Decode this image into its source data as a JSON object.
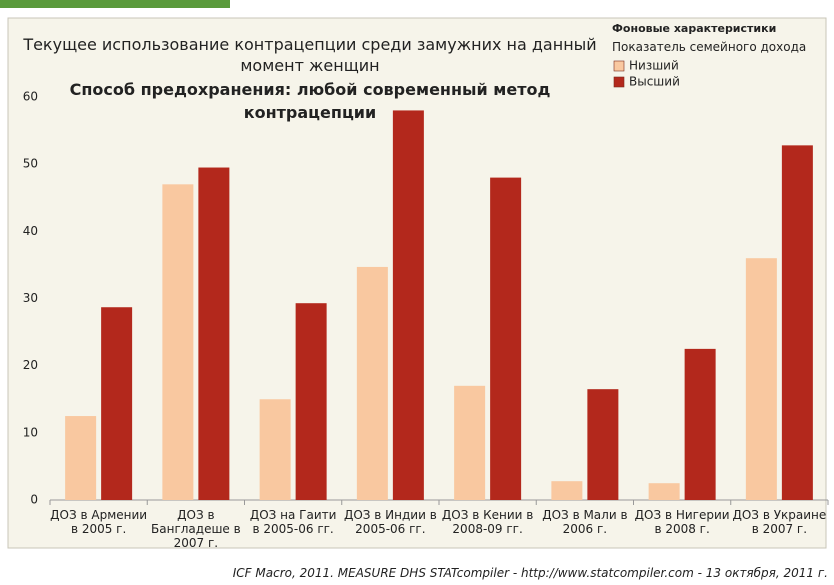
{
  "chart_data": {
    "type": "bar",
    "title": "Текущее использование контрацепции среди замужних на данный момент женщин",
    "subtitle": "Способ предохранения: любой современный метод контрацепции",
    "legend_title": "Фоновые характеристики",
    "legend_subtitle": "Показатель семейного дохода",
    "legend_position": "upper right",
    "source": "ICF Macro, 2011. MEASURE DHS STATcompiler - http://www.statcompiler.com - 13 октября, 2011 г.",
    "categories": [
      "ДОЗ в Армении в 2005 г.",
      "ДОЗ в Бангладеше в 2007 г.",
      "ДОЗ на Гаити в 2005-06 гг.",
      "ДОЗ в Индии в 2005-06 гг.",
      "ДОЗ в Кении в 2008-09 гг.",
      "ДОЗ в Мали в 2006 г.",
      "ДОЗ в Нигерии в 2008 г.",
      "ДОЗ в Украине в 2007 г."
    ],
    "series": [
      {
        "name": "Низший",
        "color": "#f9c8a0",
        "values": [
          12.5,
          47,
          15,
          34.7,
          17,
          2.8,
          2.5,
          36
        ]
      },
      {
        "name": "Высший",
        "color": "#b3281c",
        "values": [
          28.7,
          49.5,
          29.3,
          58,
          48,
          16.5,
          22.5,
          52.8
        ]
      }
    ],
    "ylim": [
      0,
      60
    ],
    "yticks": [
      0,
      10,
      20,
      30,
      40,
      50,
      60
    ],
    "grid": false
  }
}
